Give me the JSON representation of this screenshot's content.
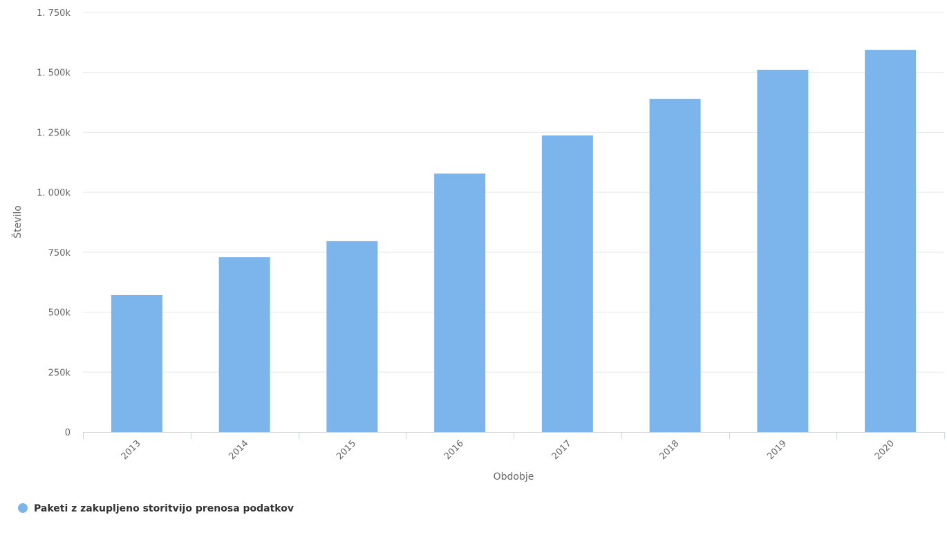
{
  "chart_data": {
    "type": "bar",
    "x_label": "Obdobje",
    "y_label": "Število",
    "categories": [
      "2013",
      "2014",
      "2015",
      "2016",
      "2017",
      "2018",
      "2019",
      "2020"
    ],
    "series": [
      {
        "name": "Paketi z zakupljeno storitvijo prenosa podatkov",
        "color": "#7cb5ec",
        "values": [
          571000,
          729000,
          796000,
          1078000,
          1237000,
          1390000,
          1511000,
          1594000
        ]
      }
    ],
    "ylim": [
      0,
      1750000
    ],
    "yticks": [
      0,
      {
        "value": 250000,
        "label": "250k"
      },
      {
        "value": 500000,
        "label": "500k"
      },
      {
        "value": 750000,
        "label": "750k"
      },
      {
        "value": 1000000,
        "label": "1. 000k"
      },
      {
        "value": 1250000,
        "label": "1. 250k"
      },
      {
        "value": 1500000,
        "label": "1. 500k"
      },
      {
        "value": 1750000,
        "label": "1. 750k"
      }
    ],
    "grid": true,
    "legend": "bottom-left"
  }
}
